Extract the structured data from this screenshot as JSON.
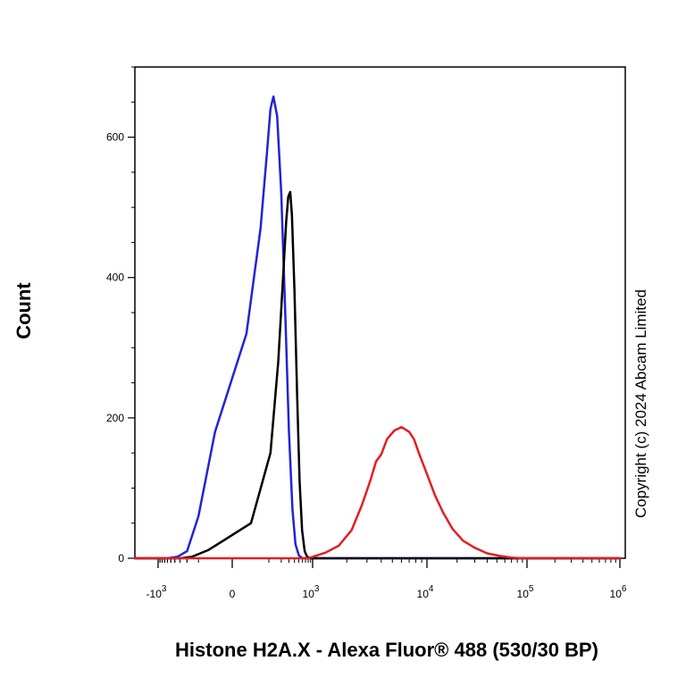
{
  "chart_data": {
    "type": "line",
    "xlabel": "Histone H2A.X - Alexa Fluor® 488 (530/30 BP)",
    "ylabel": "Count",
    "ylim": [
      0,
      700
    ],
    "x_scale": "biexponential",
    "y_ticks": [
      {
        "value": 0,
        "label": "0"
      },
      {
        "value": 200,
        "label": "200"
      },
      {
        "value": 400,
        "label": "400"
      },
      {
        "value": 600,
        "label": "600"
      }
    ],
    "x_ticks": [
      {
        "value": -1000,
        "base": "-10",
        "exp": "3"
      },
      {
        "value": 0,
        "base": "0",
        "exp": ""
      },
      {
        "value": 1000,
        "base": "10",
        "exp": "3"
      },
      {
        "value": 10000,
        "base": "10",
        "exp": "4"
      },
      {
        "value": 100000,
        "base": "10",
        "exp": "5"
      },
      {
        "value": 1000000,
        "base": "10",
        "exp": "6"
      }
    ],
    "grid": false,
    "series": [
      {
        "color": "#2323d6",
        "points": [
          [
            -1100,
            0
          ],
          [
            -600,
            0
          ],
          [
            -350,
            2
          ],
          [
            -200,
            10
          ],
          [
            -100,
            60
          ],
          [
            -30,
            180
          ],
          [
            20,
            320
          ],
          [
            60,
            470
          ],
          [
            90,
            580
          ],
          [
            110,
            640
          ],
          [
            130,
            658
          ],
          [
            160,
            630
          ],
          [
            200,
            520
          ],
          [
            250,
            340
          ],
          [
            300,
            180
          ],
          [
            360,
            70
          ],
          [
            420,
            20
          ],
          [
            500,
            4
          ],
          [
            600,
            0
          ],
          [
            1000000,
            0
          ]
        ]
      },
      {
        "color": "#000000",
        "points": [
          [
            -1100,
            0
          ],
          [
            -300,
            0
          ],
          [
            -150,
            2
          ],
          [
            -50,
            12
          ],
          [
            30,
            50
          ],
          [
            110,
            150
          ],
          [
            170,
            280
          ],
          [
            220,
            400
          ],
          [
            260,
            480
          ],
          [
            290,
            515
          ],
          [
            320,
            522
          ],
          [
            350,
            490
          ],
          [
            400,
            380
          ],
          [
            460,
            230
          ],
          [
            520,
            110
          ],
          [
            590,
            40
          ],
          [
            670,
            10
          ],
          [
            760,
            2
          ],
          [
            900,
            0
          ],
          [
            1000000,
            0
          ]
        ]
      },
      {
        "color": "#e02020",
        "points": [
          [
            -1100,
            0
          ],
          [
            800,
            0
          ],
          [
            1000,
            2
          ],
          [
            1300,
            8
          ],
          [
            1700,
            18
          ],
          [
            2200,
            40
          ],
          [
            2700,
            75
          ],
          [
            3200,
            110
          ],
          [
            3600,
            138
          ],
          [
            4000,
            148
          ],
          [
            4500,
            170
          ],
          [
            5200,
            182
          ],
          [
            6000,
            187
          ],
          [
            7000,
            180
          ],
          [
            7700,
            170
          ],
          [
            8500,
            150
          ],
          [
            10000,
            120
          ],
          [
            12000,
            90
          ],
          [
            14500,
            65
          ],
          [
            18000,
            42
          ],
          [
            23000,
            25
          ],
          [
            30000,
            15
          ],
          [
            40000,
            7
          ],
          [
            55000,
            3
          ],
          [
            70000,
            1
          ],
          [
            90000,
            0
          ],
          [
            1000000,
            0
          ]
        ]
      }
    ]
  },
  "copyright": "Copyright (c) 2024 Abcam Limited"
}
